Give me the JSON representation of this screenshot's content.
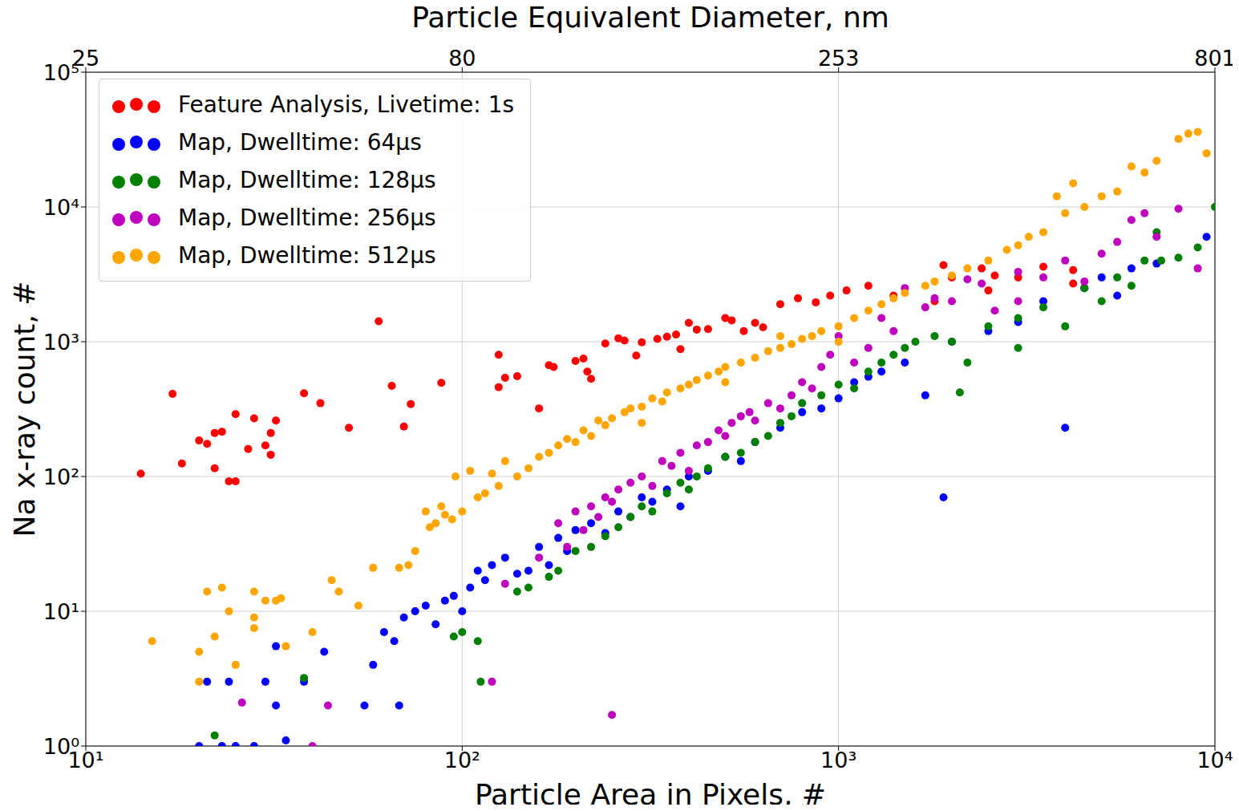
{
  "chart_data": {
    "type": "scatter",
    "x2label": "Particle Equivalent Diameter, nm",
    "xlabel": "Particle Area in Pixels, #",
    "ylabel": "Na x-ray count, #",
    "log": true,
    "grid": true,
    "legend": "upper left",
    "marker": "circle",
    "xlim": [
      10,
      10000
    ],
    "ylim": [
      1,
      100000
    ],
    "x2lim": [
      10,
      10000
    ],
    "xticks": [
      {
        "value": 10,
        "label": "10¹"
      },
      {
        "value": 100,
        "label": "10²"
      },
      {
        "value": 1000,
        "label": "10³"
      },
      {
        "value": 10000,
        "label": "10⁴"
      }
    ],
    "yticks": [
      {
        "value": 1,
        "label": "10⁰"
      },
      {
        "value": 10,
        "label": "10¹"
      },
      {
        "value": 100,
        "label": "10²"
      },
      {
        "value": 1000,
        "label": "10³"
      },
      {
        "value": 10000,
        "label": "10⁴"
      },
      {
        "value": 100000,
        "label": "10⁵"
      }
    ],
    "x2ticks": [
      {
        "value": 10,
        "label": "25"
      },
      {
        "value": 100,
        "label": "80"
      },
      {
        "value": 1000,
        "label": "253"
      },
      {
        "value": 10000,
        "label": "801"
      }
    ],
    "series": [
      {
        "name": "Feature Analysis, Livetime: 1s",
        "color": "#ff0000",
        "x": [
          14,
          17,
          18,
          20,
          21,
          22,
          22,
          23,
          24,
          25,
          25,
          27,
          28,
          30,
          31,
          31,
          32,
          38,
          42,
          50,
          60,
          65,
          70,
          73,
          88,
          125,
          125,
          130,
          140,
          160,
          170,
          175,
          200,
          210,
          215,
          220,
          240,
          260,
          270,
          290,
          300,
          330,
          350,
          370,
          380,
          400,
          420,
          450,
          500,
          520,
          560,
          600,
          630,
          700,
          780,
          870,
          950,
          1050,
          1200,
          1400,
          1800,
          2000,
          2400,
          2600,
          3000,
          3500,
          4200,
          4200,
          1900,
          2500
        ],
        "values": [
          105,
          410,
          125,
          185,
          175,
          115,
          210,
          215,
          92,
          290,
          92,
          160,
          270,
          170,
          145,
          210,
          260,
          415,
          350,
          230,
          1420,
          470,
          235,
          345,
          495,
          800,
          460,
          540,
          555,
          320,
          670,
          650,
          720,
          750,
          600,
          530,
          970,
          1060,
          1020,
          790,
          990,
          1050,
          1090,
          1130,
          880,
          1380,
          1230,
          1240,
          1500,
          1440,
          1200,
          1380,
          1280,
          1900,
          2100,
          1960,
          2200,
          2400,
          2600,
          2200,
          2000,
          3000,
          3500,
          3100,
          3000,
          3600,
          3400,
          2700,
          3700,
          2400
        ]
      },
      {
        "name": "Map, Dwelltime: 64μs",
        "color": "#0000ff",
        "x": [
          20,
          21,
          23,
          24,
          25,
          28,
          30,
          32,
          32,
          34,
          38,
          43,
          55,
          58,
          62,
          66,
          68,
          70,
          75,
          80,
          85,
          90,
          95,
          100,
          105,
          110,
          115,
          120,
          130,
          140,
          150,
          160,
          170,
          180,
          190,
          200,
          220,
          240,
          260,
          280,
          300,
          320,
          350,
          380,
          400,
          450,
          500,
          550,
          600,
          700,
          800,
          900,
          1000,
          1100,
          1200,
          1300,
          1500,
          1700,
          1900,
          2000,
          2500,
          3000,
          3500,
          4000,
          4500,
          5000,
          6000,
          7000,
          9500,
          5500
        ],
        "values": [
          1,
          3,
          1,
          3,
          1,
          1,
          3,
          2,
          5.5,
          1.1,
          3,
          5,
          2,
          4,
          7,
          6,
          2,
          9,
          10,
          11,
          8,
          12,
          13,
          10,
          15,
          20,
          17,
          22,
          25,
          19,
          20,
          30,
          22,
          35,
          28,
          40,
          45,
          38,
          55,
          50,
          70,
          65,
          80,
          60,
          100,
          110,
          140,
          130,
          180,
          230,
          300,
          320,
          380,
          500,
          550,
          600,
          700,
          400,
          70,
          1000,
          1200,
          1400,
          2000,
          230,
          2500,
          3000,
          3500,
          3800,
          6000,
          2200
        ]
      },
      {
        "name": "Map, Dwelltime: 128μs",
        "color": "#008000",
        "x": [
          22,
          38,
          95,
          100,
          110,
          112,
          140,
          150,
          170,
          180,
          200,
          220,
          240,
          260,
          280,
          300,
          320,
          350,
          380,
          400,
          420,
          450,
          500,
          550,
          600,
          650,
          700,
          750,
          800,
          900,
          1000,
          1100,
          1200,
          1300,
          1400,
          1500,
          1600,
          1800,
          2000,
          2200,
          2500,
          3000,
          3500,
          3000,
          4000,
          5000,
          5500,
          6000,
          6500,
          7000,
          7200,
          9000,
          10000,
          2100,
          4500,
          8000
        ],
        "values": [
          1.2,
          3.2,
          6.5,
          7,
          6,
          3,
          14,
          15,
          18,
          20,
          28,
          30,
          36,
          42,
          50,
          60,
          55,
          75,
          90,
          80,
          100,
          115,
          140,
          150,
          180,
          200,
          250,
          280,
          350,
          400,
          480,
          450,
          600,
          700,
          800,
          900,
          1000,
          1100,
          1000,
          700,
          1300,
          1500,
          1800,
          900,
          1300,
          2000,
          3000,
          2600,
          4000,
          6500,
          4000,
          5000,
          10000,
          420,
          2500,
          4200
        ]
      },
      {
        "name": "Map, Dwelltime: 256μs",
        "color": "#bf00bf",
        "x": [
          26,
          40,
          44,
          130,
          160,
          180,
          190,
          200,
          210,
          220,
          230,
          240,
          250,
          260,
          280,
          300,
          320,
          340,
          360,
          380,
          400,
          420,
          450,
          480,
          500,
          520,
          550,
          580,
          600,
          650,
          700,
          750,
          800,
          850,
          900,
          950,
          1000,
          1100,
          1200,
          1300,
          1400,
          1500,
          1700,
          1800,
          2000,
          2200,
          2400,
          2600,
          3000,
          3500,
          4000,
          4500,
          5000,
          5500,
          6000,
          6500,
          8000,
          9000,
          7000,
          250,
          120,
          3000
        ],
        "values": [
          2.1,
          1,
          2,
          16,
          25,
          45,
          30,
          55,
          40,
          60,
          50,
          70,
          65,
          80,
          90,
          100,
          85,
          130,
          120,
          150,
          110,
          170,
          180,
          220,
          200,
          250,
          280,
          300,
          260,
          350,
          320,
          400,
          500,
          450,
          650,
          800,
          1100,
          700,
          900,
          1500,
          1200,
          2500,
          1800,
          2100,
          2000,
          2900,
          2700,
          1700,
          2000,
          3000,
          4000,
          2800,
          4500,
          5500,
          8000,
          9000,
          9700,
          3500,
          6000,
          1.7,
          3,
          3300
        ]
      },
      {
        "name": "Map, Dwelltime: 512μs",
        "color": "#ffa500",
        "x": [
          15,
          20,
          20,
          21,
          22,
          23,
          24,
          25,
          28,
          28,
          28,
          30,
          32,
          33,
          34,
          40,
          45,
          47,
          53,
          58,
          68,
          72,
          75,
          80,
          82,
          85,
          88,
          90,
          94,
          96,
          100,
          105,
          110,
          115,
          120,
          125,
          130,
          140,
          150,
          160,
          170,
          180,
          190,
          200,
          210,
          220,
          230,
          240,
          250,
          270,
          280,
          300,
          320,
          340,
          350,
          380,
          400,
          420,
          450,
          480,
          500,
          550,
          600,
          650,
          700,
          750,
          800,
          850,
          900,
          1000,
          1100,
          1200,
          1300,
          1400,
          1500,
          1700,
          1800,
          2000,
          2200,
          2500,
          2800,
          3000,
          3500,
          4000,
          4200,
          4500,
          5000,
          5500,
          6000,
          6500,
          7000,
          8000,
          8500,
          9000,
          9500,
          3800,
          3200,
          300,
          500,
          700,
          1000
        ],
        "values": [
          6,
          5,
          3,
          14,
          6.5,
          15,
          10,
          4,
          14,
          9,
          7.5,
          12,
          12,
          12.5,
          5.5,
          7,
          17,
          14,
          11,
          21,
          21,
          22,
          28,
          55,
          42,
          45,
          60,
          52,
          48,
          100,
          55,
          110,
          70,
          75,
          105,
          85,
          130,
          100,
          115,
          140,
          150,
          170,
          190,
          180,
          220,
          200,
          260,
          240,
          270,
          300,
          320,
          330,
          380,
          360,
          420,
          450,
          480,
          520,
          560,
          600,
          650,
          700,
          760,
          850,
          900,
          960,
          1050,
          1100,
          1200,
          1300,
          1500,
          1700,
          1900,
          2100,
          2300,
          2600,
          2800,
          3100,
          3500,
          4000,
          4800,
          5200,
          6500,
          9000,
          15000,
          10000,
          12000,
          13000,
          20000,
          18000,
          22000,
          32000,
          35000,
          36000,
          25000,
          12000,
          6000,
          250,
          500,
          1100,
          1000
        ]
      }
    ]
  }
}
